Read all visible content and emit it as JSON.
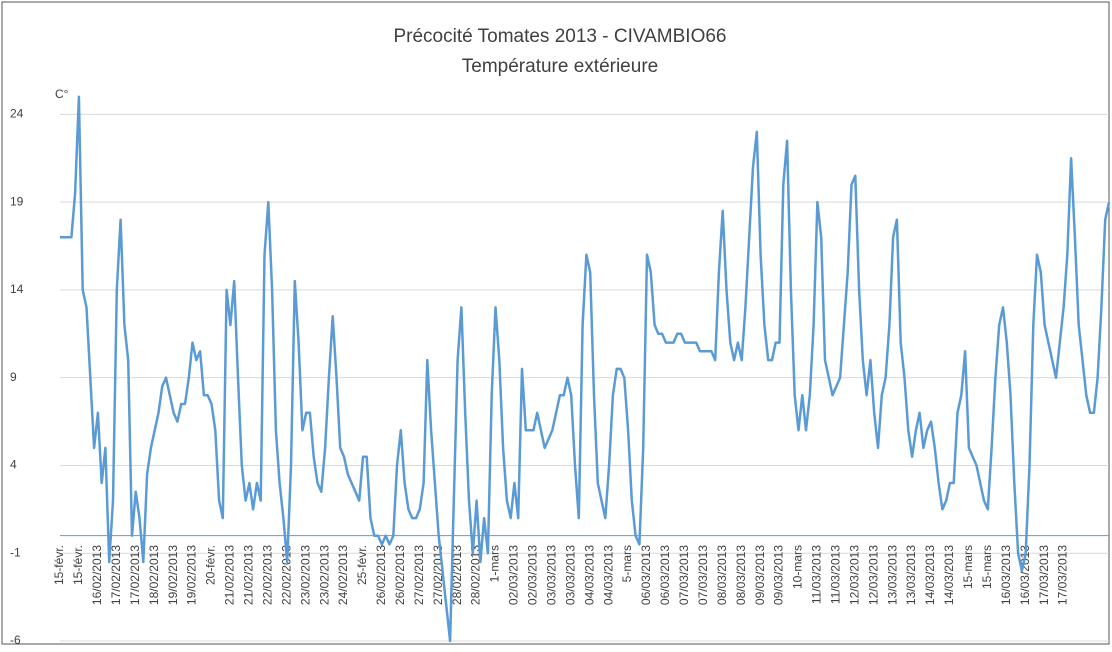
{
  "chart_data": {
    "type": "line",
    "title": "Précocité Tomates 2013 - CIVAMBIO66",
    "subtitle": "Température extérieure",
    "y_label": "C°",
    "categories": [
      "15-févr.",
      null,
      null,
      null,
      null,
      "15-févr.",
      null,
      null,
      null,
      null,
      "16/02/2013",
      null,
      null,
      null,
      null,
      "17/02/2013",
      null,
      null,
      null,
      null,
      "17/02/2013",
      null,
      null,
      null,
      null,
      "18/02/2013",
      null,
      null,
      null,
      null,
      "19/02/2013",
      null,
      null,
      null,
      null,
      "19/02/2013",
      null,
      null,
      null,
      null,
      "20-févr.",
      null,
      null,
      null,
      null,
      "21/02/2013",
      null,
      null,
      null,
      null,
      "21/02/2013",
      null,
      null,
      null,
      null,
      "22/02/2013",
      null,
      null,
      null,
      null,
      "22/02/2013",
      null,
      null,
      null,
      null,
      "23/02/2013",
      null,
      null,
      null,
      null,
      "23/02/2013",
      null,
      null,
      null,
      null,
      "24/02/2013",
      null,
      null,
      null,
      null,
      "25-févr.",
      null,
      null,
      null,
      null,
      "26/02/2013",
      null,
      null,
      null,
      null,
      "26/02/2013",
      null,
      null,
      null,
      null,
      "27/02/2013",
      null,
      null,
      null,
      null,
      "27/02/2013",
      null,
      null,
      null,
      null,
      "28/02/2013",
      null,
      null,
      null,
      null,
      "28/02/2013",
      null,
      null,
      null,
      null,
      "1-mars",
      null,
      null,
      null,
      null,
      "02/03/2013",
      null,
      null,
      null,
      null,
      "02/03/2013",
      null,
      null,
      null,
      null,
      "03/03/2013",
      null,
      null,
      null,
      null,
      "03/03/2013",
      null,
      null,
      null,
      null,
      "04/03/2013",
      null,
      null,
      null,
      null,
      "04/03/2013",
      null,
      null,
      null,
      null,
      "5-mars",
      null,
      null,
      null,
      null,
      "06/03/2013",
      null,
      null,
      null,
      null,
      "06/03/2013",
      null,
      null,
      null,
      null,
      "07/03/2013",
      null,
      null,
      null,
      null,
      "07/03/2013",
      null,
      null,
      null,
      null,
      "08/03/2013",
      null,
      null,
      null,
      null,
      "08/03/2013",
      null,
      null,
      null,
      null,
      "09/03/2013",
      null,
      null,
      null,
      null,
      "09/03/2013",
      null,
      null,
      null,
      null,
      "10-mars",
      null,
      null,
      null,
      null,
      "11/03/2013",
      null,
      null,
      null,
      null,
      "11/03/2013",
      null,
      null,
      null,
      null,
      "12/03/2013",
      null,
      null,
      null,
      null,
      "12/03/2013",
      null,
      null,
      null,
      null,
      "13/03/2013",
      null,
      null,
      null,
      null,
      "13/03/2013",
      null,
      null,
      null,
      null,
      "14/03/2013",
      null,
      null,
      null,
      null,
      "14/03/2013",
      null,
      null,
      null,
      null,
      "15-mars",
      null,
      null,
      null,
      null,
      "15-mars",
      null,
      null,
      null,
      null,
      "16/03/2013",
      null,
      null,
      null,
      null,
      "16/03/2013",
      null,
      null,
      null,
      null,
      "17/03/2013",
      null,
      null,
      null,
      null,
      "17/03/2013",
      null,
      null,
      null,
      null,
      null,
      null,
      null,
      null,
      null,
      null,
      null,
      null
    ],
    "values": [
      17,
      17,
      17,
      17,
      19.5,
      25,
      14,
      13,
      9,
      5,
      7,
      3,
      5,
      -1.5,
      2,
      14,
      18,
      12,
      10,
      0,
      2.5,
      1,
      -1.5,
      3.5,
      5,
      6,
      7,
      8.5,
      9,
      8,
      7,
      6.5,
      7.5,
      7.5,
      9,
      11,
      10,
      10.5,
      8,
      8,
      7.5,
      6,
      2,
      1,
      14,
      12,
      14.5,
      9,
      4,
      2,
      3,
      1.5,
      3,
      2,
      16,
      19,
      14,
      6,
      3,
      1,
      -1.5,
      4,
      14.5,
      11,
      6,
      7,
      7,
      4.5,
      3,
      2.5,
      5,
      9,
      12.5,
      9,
      5,
      4.5,
      3.5,
      3,
      2.5,
      2,
      4.5,
      4.5,
      1,
      0,
      0,
      -0.5,
      0,
      -0.5,
      0,
      4,
      6,
      3,
      1.5,
      1,
      1,
      1.5,
      3,
      10,
      6,
      3,
      0,
      -2,
      -4,
      -6,
      2,
      10,
      13,
      7,
      2,
      -1,
      2,
      -1.5,
      1,
      -1,
      8,
      13,
      10,
      5,
      2,
      1,
      3,
      1,
      9.5,
      6,
      6,
      6,
      7,
      6,
      5,
      5.5,
      6,
      7,
      8,
      8,
      9,
      8,
      4,
      1,
      12,
      16,
      15,
      8,
      3,
      2,
      1,
      4,
      8,
      9.5,
      9.5,
      9,
      6,
      2,
      0,
      -0.5,
      5,
      16,
      15,
      12,
      11.5,
      11.5,
      11,
      11,
      11,
      11.5,
      11.5,
      11,
      11,
      11,
      11,
      10.5,
      10.5,
      10.5,
      10.5,
      10,
      15,
      18.5,
      14,
      11,
      10,
      11,
      10,
      13,
      17,
      21,
      23,
      16,
      12,
      10,
      10,
      11,
      11,
      20,
      22.5,
      14,
      8,
      6,
      8,
      6,
      8,
      12,
      19,
      17,
      10,
      9,
      8,
      8.5,
      9,
      12,
      15,
      20,
      20.5,
      14,
      10,
      8,
      10,
      7,
      5,
      8,
      9,
      12,
      17,
      18,
      11,
      9,
      6,
      4.5,
      6,
      7,
      5,
      6,
      6.5,
      5,
      3,
      1.5,
      2,
      3,
      3,
      7,
      8,
      10.5,
      5,
      4.5,
      4,
      3,
      2,
      1.5,
      5,
      9,
      12,
      13,
      11,
      8,
      3,
      -1,
      -2,
      -1,
      4,
      12,
      16,
      15,
      12,
      11,
      10,
      9,
      11,
      13,
      16,
      21.5,
      17,
      12,
      10,
      8,
      7,
      7,
      9,
      13,
      18,
      19
    ],
    "color": "#5b9bd5",
    "ylim": [
      -6,
      25.5
    ],
    "yticks": [
      -6,
      -1,
      4,
      9,
      14,
      19,
      24
    ],
    "grid": true
  }
}
